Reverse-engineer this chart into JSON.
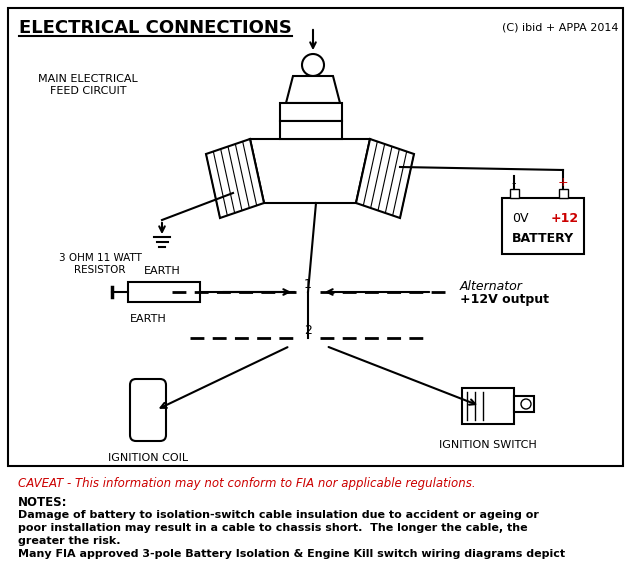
{
  "title": "ELECTRICAL CONNECTIONS",
  "copyright": "(C) ibid + APPA 2014",
  "bg_color": "#ffffff",
  "border_color": "#000000",
  "text_color": "#000000",
  "red_color": "#cc0000",
  "caveat_text": "CAVEAT - This information may not conform to FIA nor applicable regulations.",
  "notes_title": "NOTES:",
  "notes_line1": "Damage of battery to isolation-switch cable insulation due to accident or ageing or",
  "notes_line2": "poor installation may result in a cable to chassis short.  The longer the cable, the",
  "notes_line3": "greater the risk.",
  "notes_line4": "Many FIA approved 3-pole Battery Isolation & Engine Kill switch wiring diagrams depict",
  "labels": {
    "main_electrical": "MAIN ELECTRICAL\nFEED CIRCUIT",
    "earth1": "EARTH",
    "earth2": "EARTH",
    "battery": "BATTERY",
    "battery_0v": "0V",
    "battery_12v": "+12",
    "resistor": "3 OHM 11 WATT\nRESISTOR",
    "alternator": "Alternator",
    "alternator_sub": "+12V output",
    "node1": "1",
    "node2": "2",
    "ignition_coil": "IGNITION COIL",
    "ignition_switch": "IGNITION SWITCH"
  }
}
